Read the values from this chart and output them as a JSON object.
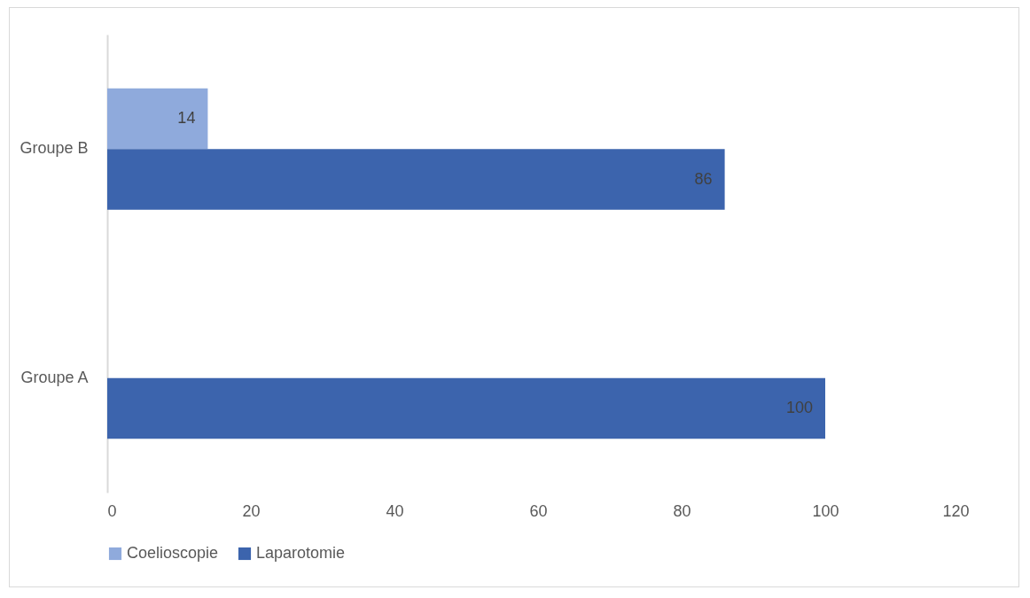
{
  "chart_data": {
    "type": "bar",
    "orientation": "horizontal",
    "categories": [
      "Groupe B",
      "Groupe A"
    ],
    "series": [
      {
        "name": "Coelioscopie",
        "color": "#8faadc",
        "values": [
          14,
          null
        ]
      },
      {
        "name": "Laparotomie",
        "color": "#3c64ad",
        "values": [
          86,
          100
        ]
      }
    ],
    "xlim": [
      0,
      120
    ],
    "xticks": [
      0,
      20,
      40,
      60,
      80,
      100,
      120
    ],
    "grid": false,
    "legend": "bottom",
    "data_labels": true
  }
}
